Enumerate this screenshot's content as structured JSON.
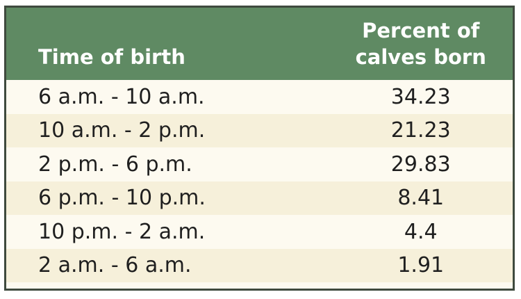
{
  "table": {
    "headers": {
      "time": "Time of birth",
      "percent_line1": "Percent of",
      "percent_line2": "calves born"
    },
    "rows": [
      {
        "time": "6 a.m. - 10 a.m.",
        "percent": "34.23"
      },
      {
        "time": "10 a.m. - 2 p.m.",
        "percent": "21.23"
      },
      {
        "time": "2 p.m. - 6 p.m.",
        "percent": "29.83"
      },
      {
        "time": "6 p.m. - 10 p.m.",
        "percent": "8.41"
      },
      {
        "time": "10 p.m. - 2 a.m.",
        "percent": "4.4"
      },
      {
        "time": "2 a.m. - 6 a.m.",
        "percent": "1.91"
      }
    ],
    "colors": {
      "header_bg": "#5f8a63",
      "border": "#3f4a3e",
      "row_light": "#fdfaf0",
      "row_shaded": "#f6f0da"
    }
  }
}
